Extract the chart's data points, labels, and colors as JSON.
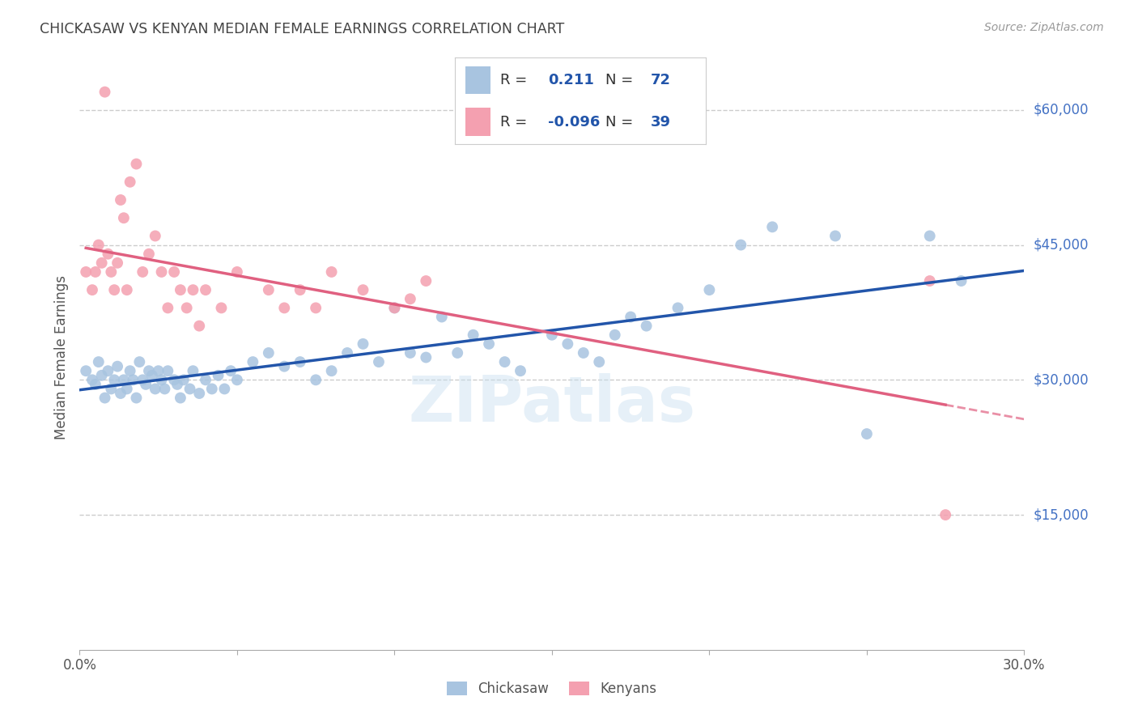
{
  "title": "CHICKASAW VS KENYAN MEDIAN FEMALE EARNINGS CORRELATION CHART",
  "source": "Source: ZipAtlas.com",
  "ylabel": "Median Female Earnings",
  "ytick_labels": [
    "$60,000",
    "$45,000",
    "$30,000",
    "$15,000"
  ],
  "ytick_values": [
    60000,
    45000,
    30000,
    15000
  ],
  "ylim": [
    0,
    65000
  ],
  "xlim": [
    0.0,
    0.3
  ],
  "chickasaw_color": "#a8c4e0",
  "kenyan_color": "#f4a0b0",
  "chickasaw_line_color": "#2255aa",
  "kenyan_line_color": "#e06080",
  "legend_R_chickasaw": "0.211",
  "legend_N_chickasaw": "72",
  "legend_R_kenyan": "-0.096",
  "legend_N_kenyan": "39",
  "watermark": "ZIPatlas",
  "background_color": "#ffffff",
  "grid_color": "#cccccc",
  "title_color": "#444444",
  "axis_label_color": "#555555",
  "ytick_color": "#4472c4",
  "xtick_color": "#555555",
  "chickasaw_scatter_x": [
    0.002,
    0.004,
    0.005,
    0.006,
    0.007,
    0.008,
    0.009,
    0.01,
    0.011,
    0.012,
    0.013,
    0.014,
    0.015,
    0.016,
    0.017,
    0.018,
    0.019,
    0.02,
    0.021,
    0.022,
    0.023,
    0.024,
    0.025,
    0.026,
    0.027,
    0.028,
    0.03,
    0.031,
    0.032,
    0.033,
    0.035,
    0.036,
    0.038,
    0.04,
    0.042,
    0.044,
    0.046,
    0.048,
    0.05,
    0.055,
    0.06,
    0.065,
    0.07,
    0.075,
    0.08,
    0.085,
    0.09,
    0.095,
    0.1,
    0.105,
    0.11,
    0.115,
    0.12,
    0.125,
    0.13,
    0.135,
    0.14,
    0.15,
    0.155,
    0.16,
    0.165,
    0.17,
    0.175,
    0.18,
    0.19,
    0.2,
    0.21,
    0.22,
    0.24,
    0.25,
    0.27,
    0.28
  ],
  "chickasaw_scatter_y": [
    31000,
    30000,
    29500,
    32000,
    30500,
    28000,
    31000,
    29000,
    30000,
    31500,
    28500,
    30000,
    29000,
    31000,
    30000,
    28000,
    32000,
    30000,
    29500,
    31000,
    30500,
    29000,
    31000,
    30000,
    29000,
    31000,
    30000,
    29500,
    28000,
    30000,
    29000,
    31000,
    28500,
    30000,
    29000,
    30500,
    29000,
    31000,
    30000,
    32000,
    33000,
    31500,
    32000,
    30000,
    31000,
    33000,
    34000,
    32000,
    38000,
    33000,
    32500,
    37000,
    33000,
    35000,
    34000,
    32000,
    31000,
    35000,
    34000,
    33000,
    32000,
    35000,
    37000,
    36000,
    38000,
    40000,
    45000,
    47000,
    46000,
    24000,
    46000,
    41000
  ],
  "kenyan_scatter_x": [
    0.002,
    0.004,
    0.005,
    0.006,
    0.007,
    0.008,
    0.009,
    0.01,
    0.011,
    0.012,
    0.013,
    0.014,
    0.015,
    0.016,
    0.018,
    0.02,
    0.022,
    0.024,
    0.026,
    0.028,
    0.03,
    0.032,
    0.034,
    0.036,
    0.038,
    0.04,
    0.045,
    0.05,
    0.06,
    0.065,
    0.07,
    0.075,
    0.08,
    0.09,
    0.1,
    0.105,
    0.11,
    0.27,
    0.275
  ],
  "kenyan_scatter_y": [
    42000,
    40000,
    42000,
    45000,
    43000,
    62000,
    44000,
    42000,
    40000,
    43000,
    50000,
    48000,
    40000,
    52000,
    54000,
    42000,
    44000,
    46000,
    42000,
    38000,
    42000,
    40000,
    38000,
    40000,
    36000,
    40000,
    38000,
    42000,
    40000,
    38000,
    40000,
    38000,
    42000,
    40000,
    38000,
    39000,
    41000,
    41000,
    15000
  ]
}
